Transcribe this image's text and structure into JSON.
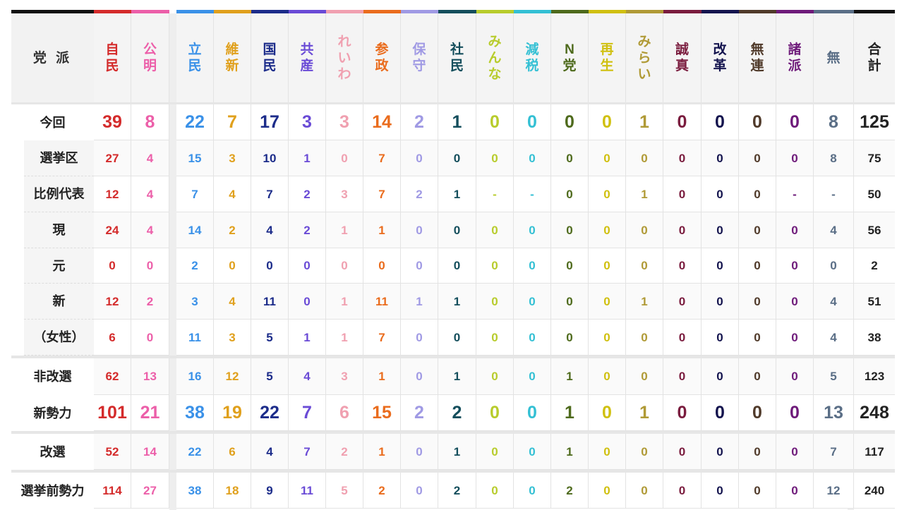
{
  "corner_label": "党 派",
  "parties": [
    {
      "key": "ldp",
      "label": "自民",
      "color": "#d42b2b"
    },
    {
      "key": "komeito",
      "label": "公明",
      "color": "#ec5fa9"
    },
    {
      "key": "cdp",
      "label": "立民",
      "color": "#3a91e8"
    },
    {
      "key": "ishin",
      "label": "維新",
      "color": "#e0a01c"
    },
    {
      "key": "dpfp",
      "label": "国民",
      "color": "#1c2c8a"
    },
    {
      "key": "jcp",
      "label": "共産",
      "color": "#6a4bd6"
    },
    {
      "key": "reiwa",
      "label": "れいわ",
      "color": "#f0a0b0"
    },
    {
      "key": "sanseito",
      "label": "参政",
      "color": "#ea6c1d"
    },
    {
      "key": "hoshu",
      "label": "保守",
      "color": "#a09ae4"
    },
    {
      "key": "sdp",
      "label": "社民",
      "color": "#144e5c"
    },
    {
      "key": "minna",
      "label": "みんな",
      "color": "#b8cc2c"
    },
    {
      "key": "genzei",
      "label": "減税",
      "color": "#34c0d4"
    },
    {
      "key": "nto",
      "label": "N党",
      "color": "#4e6a1c"
    },
    {
      "key": "saisei",
      "label": "再生",
      "color": "#d0c010"
    },
    {
      "key": "mirai",
      "label": "みらい",
      "color": "#b09a36"
    },
    {
      "key": "seishin",
      "label": "誠真",
      "color": "#7a1c3e"
    },
    {
      "key": "kaikaku",
      "label": "改革",
      "color": "#14144e"
    },
    {
      "key": "muren",
      "label": "無連",
      "color": "#503a2a"
    },
    {
      "key": "shoha",
      "label": "諸派",
      "color": "#6e1a7a"
    },
    {
      "key": "independent",
      "label": "無",
      "color": "#5a6e86"
    }
  ],
  "total_label": "合計",
  "rows": [
    {
      "label": "今回",
      "style": "big",
      "values": [
        "39",
        "8",
        "22",
        "7",
        "17",
        "3",
        "3",
        "14",
        "2",
        "1",
        "0",
        "0",
        "0",
        "0",
        "1",
        "0",
        "0",
        "0",
        "0",
        "8"
      ],
      "total": "125"
    },
    {
      "label": "選挙区",
      "style": "small",
      "values": [
        "27",
        "4",
        "15",
        "3",
        "10",
        "1",
        "0",
        "7",
        "0",
        "0",
        "0",
        "0",
        "0",
        "0",
        "0",
        "0",
        "0",
        "0",
        "0",
        "8"
      ],
      "total": "75"
    },
    {
      "label": "比例代表",
      "style": "small",
      "values": [
        "12",
        "4",
        "7",
        "4",
        "7",
        "2",
        "3",
        "7",
        "2",
        "1",
        "-",
        "-",
        "0",
        "0",
        "1",
        "0",
        "0",
        "0",
        "-",
        "-"
      ],
      "total": "50"
    },
    {
      "label": "現",
      "style": "small",
      "values": [
        "24",
        "4",
        "14",
        "2",
        "4",
        "2",
        "1",
        "1",
        "0",
        "0",
        "0",
        "0",
        "0",
        "0",
        "0",
        "0",
        "0",
        "0",
        "0",
        "4"
      ],
      "total": "56"
    },
    {
      "label": "元",
      "style": "small",
      "values": [
        "0",
        "0",
        "2",
        "0",
        "0",
        "0",
        "0",
        "0",
        "0",
        "0",
        "0",
        "0",
        "0",
        "0",
        "0",
        "0",
        "0",
        "0",
        "0",
        "0"
      ],
      "total": "2"
    },
    {
      "label": "新",
      "style": "small",
      "values": [
        "12",
        "2",
        "3",
        "4",
        "11",
        "0",
        "1",
        "11",
        "1",
        "1",
        "0",
        "0",
        "0",
        "0",
        "1",
        "0",
        "0",
        "0",
        "0",
        "4"
      ],
      "total": "51"
    },
    {
      "label": "（女性）",
      "style": "small",
      "values": [
        "6",
        "0",
        "11",
        "3",
        "5",
        "1",
        "1",
        "7",
        "0",
        "0",
        "0",
        "0",
        "0",
        "0",
        "0",
        "0",
        "0",
        "0",
        "0",
        "4"
      ],
      "total": "38"
    },
    {
      "label": "非改選",
      "style": "small",
      "values": [
        "62",
        "13",
        "16",
        "12",
        "5",
        "4",
        "3",
        "1",
        "0",
        "1",
        "0",
        "0",
        "1",
        "0",
        "0",
        "0",
        "0",
        "0",
        "0",
        "5"
      ],
      "total": "123"
    },
    {
      "label": "新勢力",
      "style": "big",
      "values": [
        "101",
        "21",
        "38",
        "19",
        "22",
        "7",
        "6",
        "15",
        "2",
        "2",
        "0",
        "0",
        "1",
        "0",
        "1",
        "0",
        "0",
        "0",
        "0",
        "13"
      ],
      "total": "248"
    },
    {
      "label": "改選",
      "style": "small",
      "values": [
        "52",
        "14",
        "22",
        "6",
        "4",
        "7",
        "2",
        "1",
        "0",
        "1",
        "0",
        "0",
        "1",
        "0",
        "0",
        "0",
        "0",
        "0",
        "0",
        "7"
      ],
      "total": "117"
    },
    {
      "label": "選挙前勢力",
      "style": "small",
      "values": [
        "114",
        "27",
        "38",
        "18",
        "9",
        "11",
        "5",
        "2",
        "0",
        "2",
        "0",
        "0",
        "2",
        "0",
        "0",
        "0",
        "0",
        "0",
        "0",
        "12"
      ],
      "total": "240"
    }
  ]
}
